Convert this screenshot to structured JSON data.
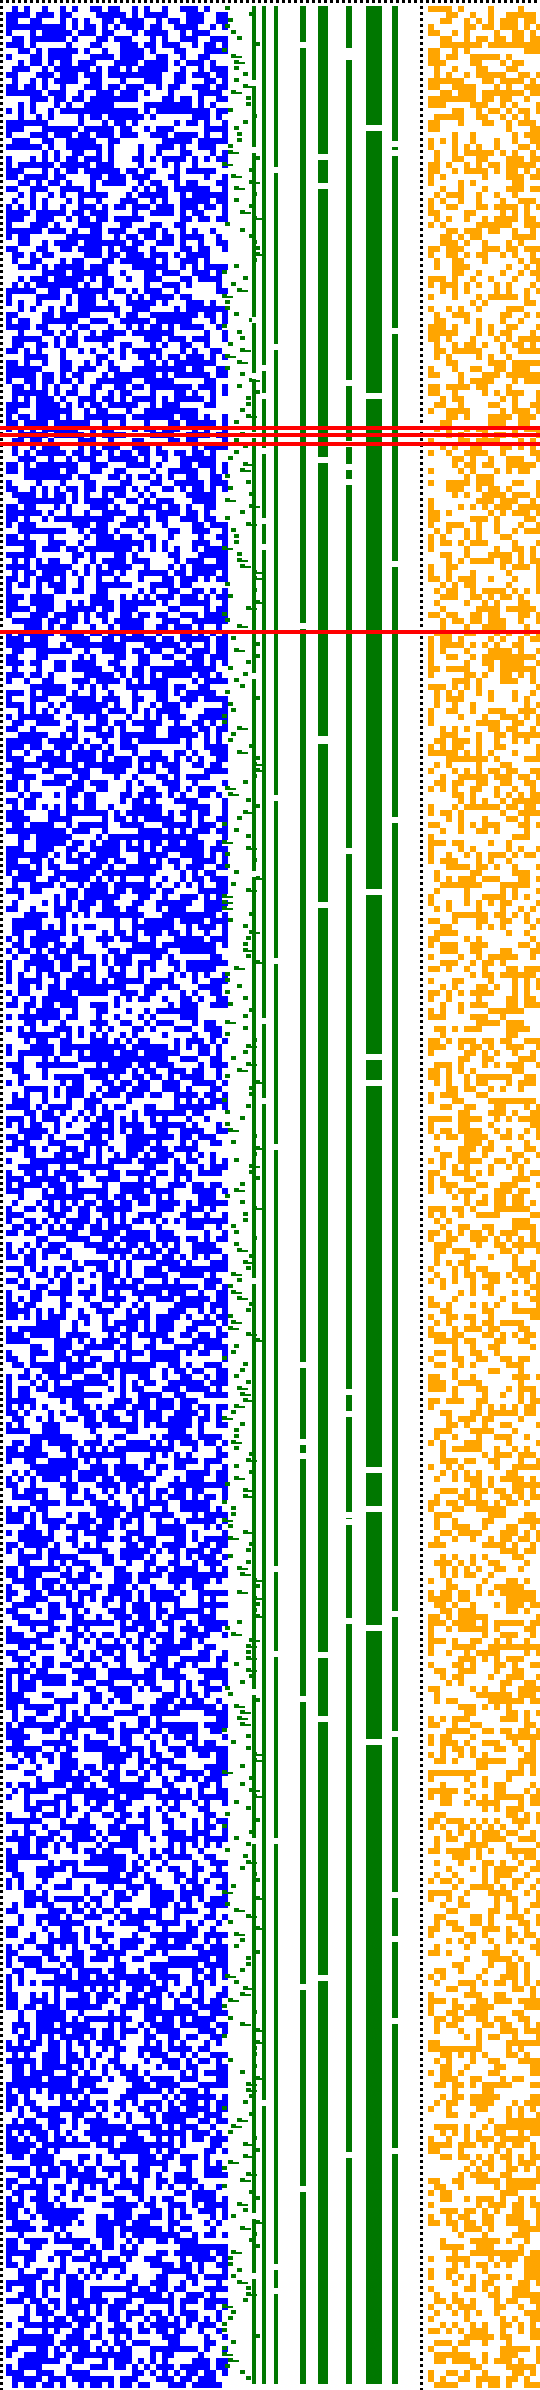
{
  "visual": {
    "colors": {
      "background": "#ffffff",
      "primary_block": "#0000ff",
      "tree_lines": "#007700",
      "secondary_block": "#ffa500",
      "separator": "#000000",
      "highlight_lines": "#ff0000"
    },
    "features": [
      "dotted-left-border",
      "dense-blue-pixel-grid",
      "green-stair-step-pattern",
      "green-vertical-bars",
      "dotted-separator",
      "orange-pixel-grid",
      "red-horizontal-markers"
    ]
  }
}
